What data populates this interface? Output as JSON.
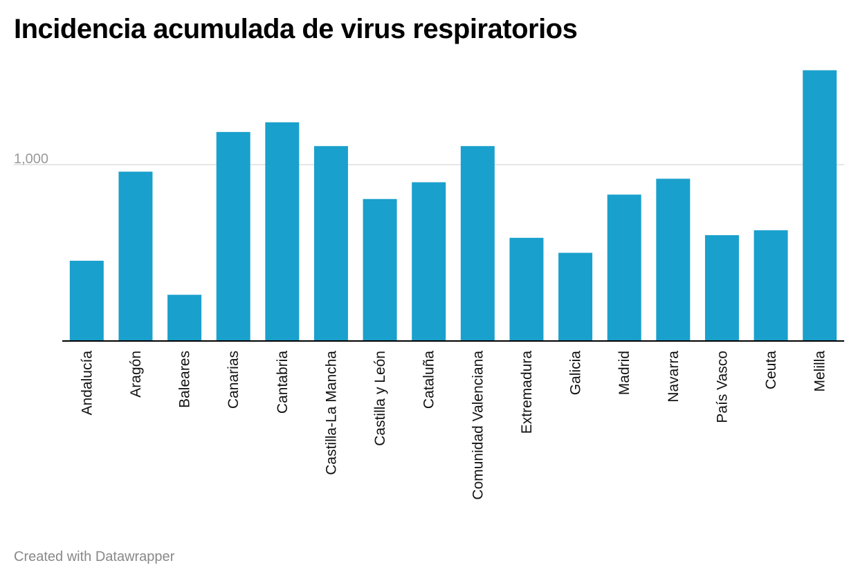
{
  "title": "Incidencia acumulada de virus respiratorios",
  "footer": "Created with Datawrapper",
  "colors": {
    "bar": "#1aa0cc",
    "grid": "#dddddd",
    "axis": "#000000"
  },
  "chart_data": {
    "type": "bar",
    "title": "Incidencia acumulada de virus respiratorios",
    "xlabel": "",
    "ylabel": "",
    "ylim": [
      0,
      1600
    ],
    "yticks": [
      1000
    ],
    "ytick_labels": [
      "1,000"
    ],
    "grid": true,
    "categories": [
      "Andalucía",
      "Aragón",
      "Baleares",
      "Canarias",
      "Cantabria",
      "Castilla-La Mancha",
      "Castilla y León",
      "Cataluña",
      "Comunidad Valenciana",
      "Extremadura",
      "Galicia",
      "Madrid",
      "Navarra",
      "País Vasco",
      "Ceuta",
      "Melilla"
    ],
    "values": [
      455,
      960,
      262,
      1185,
      1240,
      1105,
      805,
      900,
      1105,
      585,
      500,
      830,
      920,
      600,
      628,
      1535
    ]
  }
}
